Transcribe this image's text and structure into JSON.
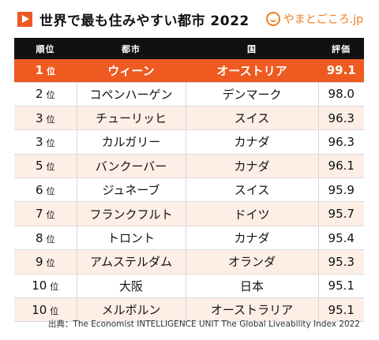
{
  "header": {
    "title": "世界で最も住みやすい都市 2022",
    "logo_text": "やまとごころ.jp"
  },
  "columns": {
    "rank": "順位",
    "city": "都市",
    "country": "国",
    "score": "評価"
  },
  "rank_unit": "位",
  "rows": [
    {
      "rank": "1",
      "city": "ウィーン",
      "country": "オーストリア",
      "score": "99.1"
    },
    {
      "rank": "2",
      "city": "コペンハーゲン",
      "country": "デンマーク",
      "score": "98.0"
    },
    {
      "rank": "3",
      "city": "チューリッヒ",
      "country": "スイス",
      "score": "96.3"
    },
    {
      "rank": "3",
      "city": "カルガリー",
      "country": "カナダ",
      "score": "96.3"
    },
    {
      "rank": "5",
      "city": "バンクーバー",
      "country": "カナダ",
      "score": "96.1"
    },
    {
      "rank": "6",
      "city": "ジュネーブ",
      "country": "スイス",
      "score": "95.9"
    },
    {
      "rank": "7",
      "city": "フランクフルト",
      "country": "ドイツ",
      "score": "95.7"
    },
    {
      "rank": "8",
      "city": "トロント",
      "country": "カナダ",
      "score": "95.4"
    },
    {
      "rank": "9",
      "city": "アムステルダム",
      "country": "オランダ",
      "score": "95.3"
    },
    {
      "rank": "10",
      "city": "大阪",
      "country": "日本",
      "score": "95.1"
    },
    {
      "rank": "10",
      "city": "メルボルン",
      "country": "オーストラリア",
      "score": "95.1"
    }
  ],
  "source": "出典：The Economist INTELLIGENCE UNIT The Global Liveability Index 2022",
  "colors": {
    "accent": "#ef5a21",
    "header_bg": "#111111",
    "alt_row": "#fdeee6",
    "logo": "#ef7d1f"
  }
}
